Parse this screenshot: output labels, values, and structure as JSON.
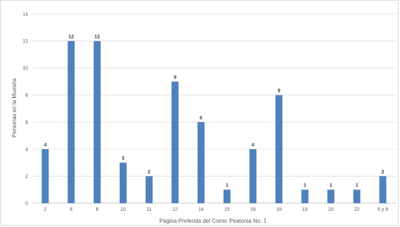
{
  "chart_data": {
    "type": "bar",
    "title": "",
    "xlabel": "Página Preferida del Comic Peatonía No. 1",
    "ylabel": "Personas en la Muestra",
    "categories": [
      "2",
      "6",
      "8",
      "10",
      "11",
      "12",
      "14",
      "15",
      "16",
      "18",
      "19",
      "20",
      "22",
      "6 y 8"
    ],
    "values": [
      4,
      12,
      12,
      3,
      2,
      9,
      6,
      1,
      4,
      8,
      1,
      1,
      1,
      2
    ],
    "data_labels": [
      "4",
      "12",
      "12",
      "3",
      "2",
      "9",
      "6",
      "1",
      "4",
      "8",
      "1",
      "1",
      "1",
      "2"
    ],
    "ylim": [
      0,
      14
    ],
    "yticks": [
      "0",
      "2",
      "4",
      "6",
      "8",
      "10",
      "12",
      "14"
    ],
    "grid": true,
    "legend": "none",
    "bar_color": "#4f81bd",
    "grid_color": "#d9d9d9"
  }
}
